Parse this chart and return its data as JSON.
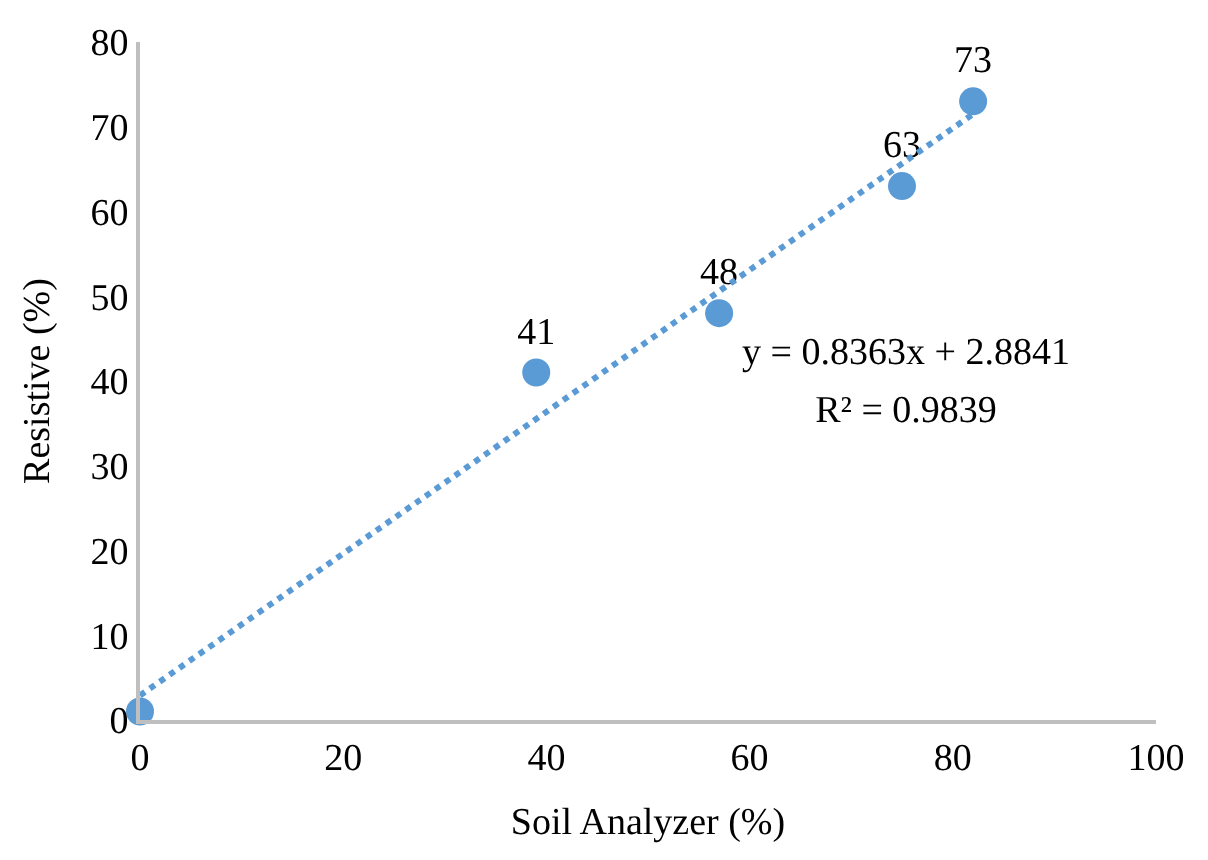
{
  "chart_data": {
    "type": "scatter",
    "xlabel": "Soil Analyzer (%)",
    "ylabel": "Resistive (%)",
    "x": [
      0,
      39,
      57,
      75,
      82
    ],
    "series": [
      {
        "color": "#5b9bd5",
        "values": [
          1,
          41,
          48,
          63,
          73
        ],
        "value_labels": [
          null,
          "41",
          "48",
          "63",
          "73"
        ],
        "marker": "circle"
      },
      {
        "type": "line",
        "color": "#5b9bd5",
        "x": [
          0,
          82
        ],
        "values": [
          2.9,
          71.5
        ],
        "line_style": "dotted",
        "marker": "none"
      }
    ],
    "xlim": [
      0,
      100
    ],
    "xticks": [
      0,
      20,
      40,
      60,
      80,
      100
    ],
    "ylim": [
      0,
      80
    ],
    "yticks": [
      0,
      10,
      20,
      30,
      40,
      50,
      60,
      70,
      80
    ],
    "grid": false,
    "annotations": [
      "y = 0.8363x + 2.8841",
      "R² = 0.9839"
    ]
  }
}
